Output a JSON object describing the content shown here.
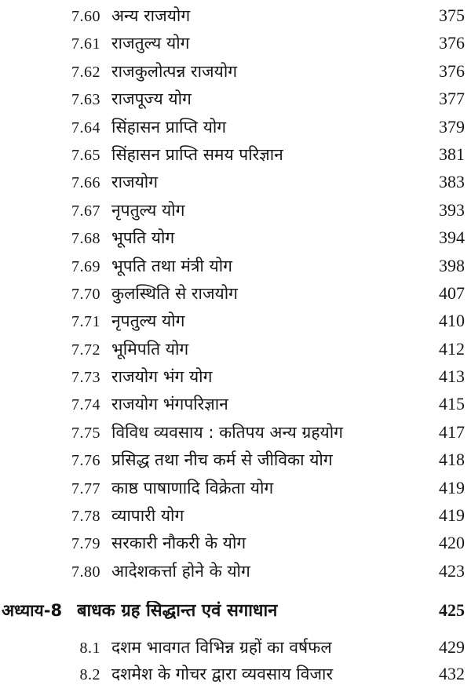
{
  "toc": {
    "sections": [
      {
        "num": "7.60",
        "title": "अन्य राजयोग",
        "page": "375"
      },
      {
        "num": "7.61",
        "title": "राजतुल्य योग",
        "page": "376"
      },
      {
        "num": "7.62",
        "title": "राजकुलोत्पन्न राजयोग",
        "page": "376"
      },
      {
        "num": "7.63",
        "title": "राजपूज्य योग",
        "page": "377"
      },
      {
        "num": "7.64",
        "title": "सिंहासन प्राप्ति योग",
        "page": "379"
      },
      {
        "num": "7.65",
        "title": "सिंहासन प्राप्ति समय परिज्ञान",
        "page": "381"
      },
      {
        "num": "7.66",
        "title": "राजयोग",
        "page": "383"
      },
      {
        "num": "7.67",
        "title": "नृपतुल्य योग",
        "page": "393"
      },
      {
        "num": "7.68",
        "title": "भूपति योग",
        "page": "394"
      },
      {
        "num": "7.69",
        "title": "भूपति तथा मंत्री योग",
        "page": "398"
      },
      {
        "num": "7.70",
        "title": "कुलस्थिति से राजयोग",
        "page": "407"
      },
      {
        "num": "7.71",
        "title": "नृपतुल्य योग",
        "page": "410"
      },
      {
        "num": "7.72",
        "title": "भूमिपति योग",
        "page": "412"
      },
      {
        "num": "7.73",
        "title": "राजयोग भंग योग",
        "page": "413"
      },
      {
        "num": "7.74",
        "title": "राजयोग भंगपरिज्ञान",
        "page": "415"
      },
      {
        "num": "7.75",
        "title": "विविध व्यवसाय : कतिपय अन्य ग्रहयोग",
        "page": "417"
      },
      {
        "num": "7.76",
        "title": "प्रसिद्ध तथा नीच कर्म से जीविका योग",
        "page": "418"
      },
      {
        "num": "7.77",
        "title": "काष्ठ पाषाणादि विक्रेता योग",
        "page": "419"
      },
      {
        "num": "7.78",
        "title": "व्यापारी योग",
        "page": "419"
      },
      {
        "num": "7.79",
        "title": "सरकारी नौकरी के योग",
        "page": "420"
      },
      {
        "num": "7.80",
        "title": "आदेशकर्त्ता होने के योग",
        "page": "423"
      }
    ],
    "chapter": {
      "label": "अध्याय-8",
      "title": "बाधक ग्रह सिद्धान्त एवं सगाधान",
      "page": "425"
    },
    "subsections": [
      {
        "num": "8.1",
        "title": "दशम भावगत विभिन्न ग्रहों का वर्षफल",
        "page": "429"
      },
      {
        "num": "8.2",
        "title": "दशमेश के गोचर द्वारा व्यवसाय विजार",
        "page": "432"
      }
    ]
  }
}
